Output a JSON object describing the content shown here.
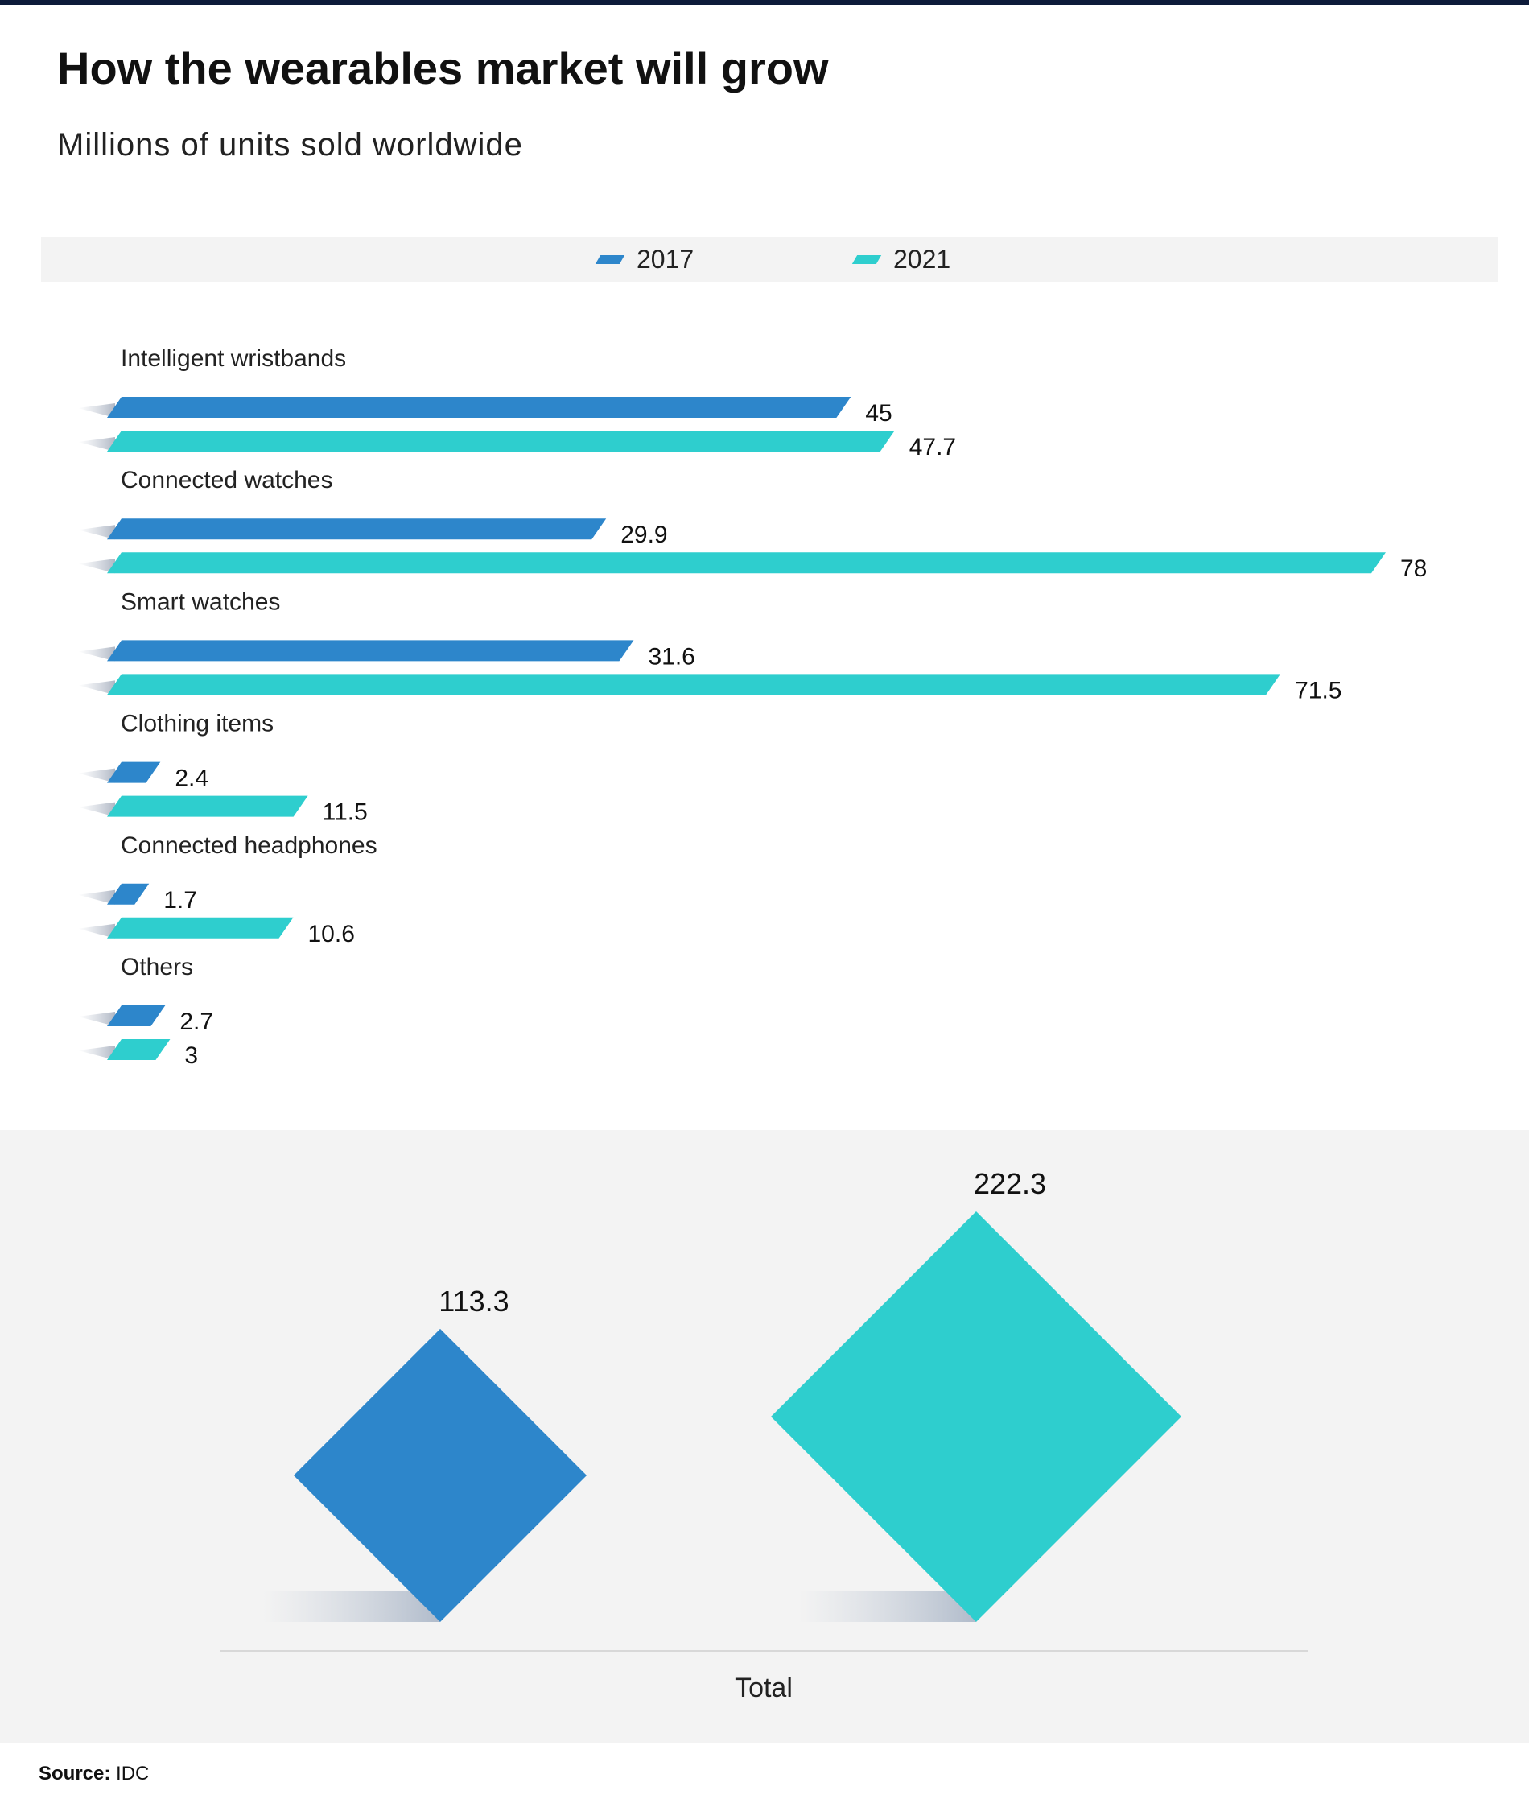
{
  "header": {
    "title": "How the wearables market will grow",
    "subtitle": "Millions of units sold worldwide"
  },
  "source": {
    "label": "Source:",
    "value": "IDC"
  },
  "colors": {
    "series_2017": "#2d86cb",
    "series_2021": "#2ecece",
    "background_band": "#f3f3f3",
    "top_bar": "#0d1b3a"
  },
  "chart_data": [
    {
      "type": "bar",
      "orientation": "horizontal",
      "title": "How the wearables market will grow",
      "subtitle": "Millions of units sold worldwide",
      "legend_position": "top-center",
      "grid": false,
      "categories": [
        "Intelligent wristbands",
        "Connected watches",
        "Smart watches",
        "Clothing items",
        "Connected headphones",
        "Others"
      ],
      "series": [
        {
          "name": "2017",
          "values": [
            45,
            29.9,
            31.6,
            2.4,
            1.7,
            2.7
          ],
          "labels": [
            "45",
            "29.9",
            "31.6",
            "2.4",
            "1.7",
            "2.7"
          ]
        },
        {
          "name": "2021",
          "values": [
            47.7,
            78,
            71.5,
            11.5,
            10.6,
            3
          ],
          "labels": [
            "47.7",
            "78",
            "71.5",
            "11.5",
            "10.6",
            "3"
          ]
        }
      ],
      "xlim": [
        0,
        78
      ]
    },
    {
      "type": "bar",
      "category": "Total",
      "series": [
        {
          "name": "2017",
          "value": 113.3,
          "label": "113.3"
        },
        {
          "name": "2021",
          "value": 222.3,
          "label": "222.3"
        }
      ]
    }
  ]
}
